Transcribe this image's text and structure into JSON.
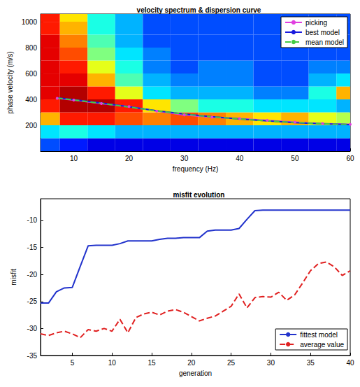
{
  "chart_data": [
    {
      "type": "heatmap",
      "title": "velocity spectrum & dispersion curve",
      "x_label": "frequency (Hz)",
      "y_label": "phase velocity (m/s)",
      "xlim": [
        4,
        60
      ],
      "xticks": [
        10,
        20,
        30,
        40,
        50,
        60
      ],
      "ylim": [
        0,
        1060
      ],
      "yticks": [
        200,
        400,
        600,
        800,
        1000
      ],
      "grid": false,
      "legend": "upper right",
      "heatmap": {
        "x": [
          5,
          10,
          15,
          20,
          25,
          30,
          35,
          40,
          45,
          50,
          55,
          60
        ],
        "y": [
          50,
          150,
          250,
          350,
          450,
          550,
          650,
          750,
          850,
          950,
          1050
        ],
        "values": [
          [
            0.2,
            0.15,
            0.1,
            0.1,
            0.1,
            0.1,
            0.1,
            0.1,
            0.1,
            0.1,
            0.1,
            0.1
          ],
          [
            0.35,
            0.4,
            0.35,
            0.3,
            0.3,
            0.3,
            0.3,
            0.3,
            0.3,
            0.3,
            0.3,
            0.3
          ],
          [
            0.7,
            0.85,
            0.85,
            0.8,
            0.75,
            0.8,
            0.75,
            0.7,
            0.65,
            0.7,
            0.6,
            0.55
          ],
          [
            0.85,
            0.95,
            0.95,
            0.85,
            0.65,
            0.5,
            0.4,
            0.4,
            0.35,
            0.35,
            0.35,
            0.3
          ],
          [
            0.9,
            0.95,
            0.85,
            0.6,
            0.35,
            0.3,
            0.3,
            0.3,
            0.25,
            0.25,
            0.4,
            0.7
          ],
          [
            0.9,
            0.9,
            0.7,
            0.45,
            0.3,
            0.25,
            0.25,
            0.25,
            0.2,
            0.2,
            0.3,
            0.35
          ],
          [
            0.9,
            0.85,
            0.6,
            0.4,
            0.25,
            0.2,
            0.25,
            0.25,
            0.2,
            0.2,
            0.25,
            0.25
          ],
          [
            0.9,
            0.8,
            0.5,
            0.35,
            0.25,
            0.2,
            0.2,
            0.2,
            0.2,
            0.2,
            0.2,
            0.2
          ],
          [
            0.9,
            0.75,
            0.45,
            0.3,
            0.2,
            0.2,
            0.2,
            0.2,
            0.2,
            0.2,
            0.2,
            0.2
          ],
          [
            0.85,
            0.7,
            0.4,
            0.3,
            0.2,
            0.2,
            0.2,
            0.2,
            0.2,
            0.2,
            0.2,
            0.2
          ],
          [
            0.85,
            0.65,
            0.4,
            0.3,
            0.2,
            0.2,
            0.2,
            0.2,
            0.2,
            0.2,
            0.2,
            0.2
          ]
        ]
      },
      "x": [
        7,
        10,
        15,
        20,
        25,
        30,
        35,
        40,
        45,
        50,
        55,
        60
      ],
      "series": [
        {
          "name": "picking",
          "type": "line",
          "color": "#e040e0",
          "marker": "circle",
          "line_style": "solid",
          "values": [
            408,
            395,
            368,
            345,
            310,
            280,
            262,
            252,
            238,
            225,
            214,
            207
          ]
        },
        {
          "name": "best model",
          "type": "line",
          "color": "#1a1add",
          "marker": "none",
          "line_style": "solid",
          "values": [
            412,
            398,
            372,
            343,
            312,
            287,
            266,
            249,
            234,
            221,
            211,
            205
          ]
        },
        {
          "name": "mean model",
          "type": "line",
          "color": "#44cc44",
          "marker": "none",
          "line_style": "dashed",
          "values": [
            410,
            396,
            370,
            341,
            311,
            286,
            265,
            249,
            234,
            222,
            212,
            206
          ]
        }
      ]
    },
    {
      "type": "line",
      "title": "misfit evolution",
      "x_label": "generation",
      "y_label": "misfit",
      "xlim": [
        1,
        40
      ],
      "xticks": [
        5,
        10,
        15,
        20,
        25,
        30,
        35,
        40
      ],
      "ylim": [
        -35,
        -6
      ],
      "yticks": [
        -35,
        -30,
        -25,
        -20,
        -15,
        -10
      ],
      "grid": false,
      "legend": "lower right",
      "x": [
        1,
        2,
        3,
        4,
        5,
        6,
        7,
        8,
        9,
        10,
        11,
        12,
        13,
        14,
        15,
        16,
        17,
        18,
        19,
        20,
        21,
        22,
        23,
        24,
        25,
        26,
        27,
        28,
        29,
        30,
        31,
        32,
        33,
        34,
        35,
        36,
        37,
        38,
        39,
        40
      ],
      "series": [
        {
          "name": "fittest model",
          "color": "#2233cc",
          "marker": "none",
          "line_style": "solid",
          "values": [
            -25.3,
            -25.3,
            -23.2,
            -22.5,
            -22.4,
            -18.5,
            -14.7,
            -14.6,
            -14.6,
            -14.6,
            -14.3,
            -13.8,
            -13.8,
            -13.8,
            -13.8,
            -13.5,
            -13.3,
            -13.3,
            -13.2,
            -13.2,
            -13.2,
            -12,
            -11.8,
            -11.8,
            -11.8,
            -11.5,
            -9.8,
            -8.2,
            -8.1,
            -8.1,
            -8.1,
            -8.1,
            -8.1,
            -8.1,
            -8.1,
            -8.1,
            -8.1,
            -8.1,
            -8.1,
            -8.1
          ]
        },
        {
          "name": "average value",
          "color": "#e02020",
          "marker": "none",
          "line_style": "dashed",
          "values": [
            -31,
            -31.3,
            -30.8,
            -30.5,
            -31,
            -31.7,
            -30.2,
            -30.5,
            -30,
            -30.5,
            -28.3,
            -30.8,
            -28,
            -27.3,
            -27,
            -27.5,
            -26.8,
            -26.5,
            -27,
            -27.8,
            -28.6,
            -28.1,
            -27.7,
            -26.8,
            -25.9,
            -23.6,
            -26.2,
            -24.3,
            -24.1,
            -24.2,
            -23.3,
            -24.8,
            -23.8,
            -21.6,
            -19.3,
            -18,
            -17.7,
            -18.6,
            -20.2,
            -19.3
          ]
        }
      ]
    }
  ]
}
